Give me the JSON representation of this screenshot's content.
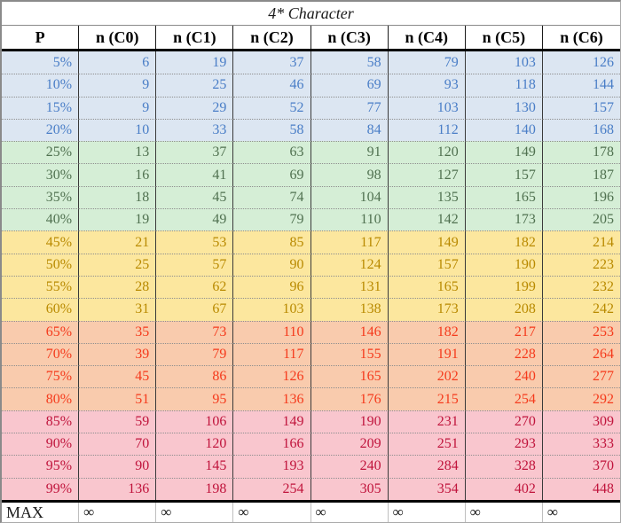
{
  "title": "4* Character",
  "columns": [
    "P",
    "n (C0)",
    "n (C1)",
    "n (C2)",
    "n (C3)",
    "n (C4)",
    "n (C5)",
    "n (C6)"
  ],
  "bands": [
    {
      "name": "blue",
      "bg": "#dce6f2",
      "fg": "#4a7ec7",
      "rows": [
        {
          "p": "5%",
          "values": [
            6,
            19,
            37,
            58,
            79,
            103,
            126
          ]
        },
        {
          "p": "10%",
          "values": [
            9,
            25,
            46,
            69,
            93,
            118,
            144
          ]
        },
        {
          "p": "15%",
          "values": [
            9,
            29,
            52,
            77,
            103,
            130,
            157
          ]
        },
        {
          "p": "20%",
          "values": [
            10,
            33,
            58,
            84,
            112,
            140,
            168
          ]
        }
      ]
    },
    {
      "name": "green",
      "bg": "#d5eed6",
      "fg": "#507150",
      "rows": [
        {
          "p": "25%",
          "values": [
            13,
            37,
            63,
            91,
            120,
            149,
            178
          ]
        },
        {
          "p": "30%",
          "values": [
            16,
            41,
            69,
            98,
            127,
            157,
            187
          ]
        },
        {
          "p": "35%",
          "values": [
            18,
            45,
            74,
            104,
            135,
            165,
            196
          ]
        },
        {
          "p": "40%",
          "values": [
            19,
            49,
            79,
            110,
            142,
            173,
            205
          ]
        }
      ]
    },
    {
      "name": "yellow",
      "bg": "#fce79e",
      "fg": "#b98a00",
      "rows": [
        {
          "p": "45%",
          "values": [
            21,
            53,
            85,
            117,
            149,
            182,
            214
          ]
        },
        {
          "p": "50%",
          "values": [
            25,
            57,
            90,
            124,
            157,
            190,
            223
          ]
        },
        {
          "p": "55%",
          "values": [
            28,
            62,
            96,
            131,
            165,
            199,
            232
          ]
        },
        {
          "p": "60%",
          "values": [
            31,
            67,
            103,
            138,
            173,
            208,
            242
          ]
        }
      ]
    },
    {
      "name": "orange",
      "bg": "#f9cbad",
      "fg": "#f53a1c",
      "rows": [
        {
          "p": "65%",
          "values": [
            35,
            73,
            110,
            146,
            182,
            217,
            253
          ]
        },
        {
          "p": "70%",
          "values": [
            39,
            79,
            117,
            155,
            191,
            228,
            264
          ]
        },
        {
          "p": "75%",
          "values": [
            45,
            86,
            126,
            165,
            202,
            240,
            277
          ]
        },
        {
          "p": "80%",
          "values": [
            51,
            95,
            136,
            176,
            215,
            254,
            292
          ]
        }
      ]
    },
    {
      "name": "pink",
      "bg": "#f9c6ce",
      "fg": "#c0143c",
      "rows": [
        {
          "p": "85%",
          "values": [
            59,
            106,
            149,
            190,
            231,
            270,
            309
          ]
        },
        {
          "p": "90%",
          "values": [
            70,
            120,
            166,
            209,
            251,
            293,
            333
          ]
        },
        {
          "p": "95%",
          "values": [
            90,
            145,
            193,
            240,
            284,
            328,
            370
          ]
        },
        {
          "p": "99%",
          "values": [
            136,
            198,
            254,
            305,
            354,
            402,
            448
          ]
        }
      ]
    }
  ],
  "max_row": {
    "label": "MAX",
    "values": [
      "∞",
      "∞",
      "∞",
      "∞",
      "∞",
      "∞",
      "∞"
    ]
  },
  "chart_data": {
    "type": "table",
    "title": "4* Character",
    "columns": [
      "P",
      "n (C0)",
      "n (C1)",
      "n (C2)",
      "n (C3)",
      "n (C4)",
      "n (C5)",
      "n (C6)"
    ],
    "rows": [
      [
        "5%",
        6,
        19,
        37,
        58,
        79,
        103,
        126
      ],
      [
        "10%",
        9,
        25,
        46,
        69,
        93,
        118,
        144
      ],
      [
        "15%",
        9,
        29,
        52,
        77,
        103,
        130,
        157
      ],
      [
        "20%",
        10,
        33,
        58,
        84,
        112,
        140,
        168
      ],
      [
        "25%",
        13,
        37,
        63,
        91,
        120,
        149,
        178
      ],
      [
        "30%",
        16,
        41,
        69,
        98,
        127,
        157,
        187
      ],
      [
        "35%",
        18,
        45,
        74,
        104,
        135,
        165,
        196
      ],
      [
        "40%",
        19,
        49,
        79,
        110,
        142,
        173,
        205
      ],
      [
        "45%",
        21,
        53,
        85,
        117,
        149,
        182,
        214
      ],
      [
        "50%",
        25,
        57,
        90,
        124,
        157,
        190,
        223
      ],
      [
        "55%",
        28,
        62,
        96,
        131,
        165,
        199,
        232
      ],
      [
        "60%",
        31,
        67,
        103,
        138,
        173,
        208,
        242
      ],
      [
        "65%",
        35,
        73,
        110,
        146,
        182,
        217,
        253
      ],
      [
        "70%",
        39,
        79,
        117,
        155,
        191,
        228,
        264
      ],
      [
        "75%",
        45,
        86,
        126,
        165,
        202,
        240,
        277
      ],
      [
        "80%",
        51,
        95,
        136,
        176,
        215,
        254,
        292
      ],
      [
        "85%",
        59,
        106,
        149,
        190,
        231,
        270,
        309
      ],
      [
        "90%",
        70,
        120,
        166,
        209,
        251,
        293,
        333
      ],
      [
        "95%",
        90,
        145,
        193,
        240,
        284,
        328,
        370
      ],
      [
        "99%",
        136,
        198,
        254,
        305,
        354,
        402,
        448
      ],
      [
        "MAX",
        "∞",
        "∞",
        "∞",
        "∞",
        "∞",
        "∞",
        "∞"
      ]
    ]
  }
}
